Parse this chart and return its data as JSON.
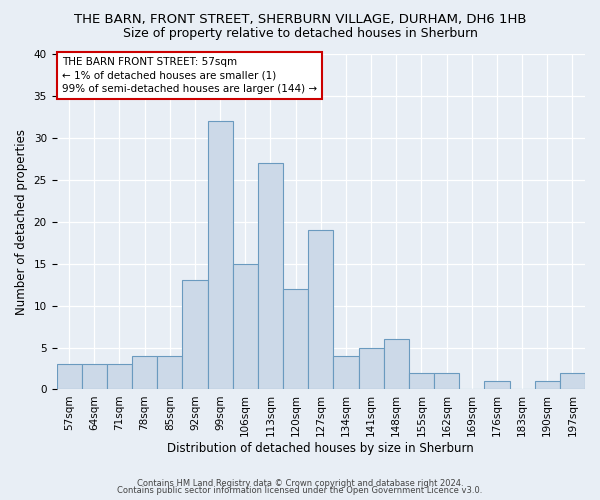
{
  "title_line1": "THE BARN, FRONT STREET, SHERBURN VILLAGE, DURHAM, DH6 1HB",
  "title_line2": "Size of property relative to detached houses in Sherburn",
  "xlabel": "Distribution of detached houses by size in Sherburn",
  "ylabel": "Number of detached properties",
  "bar_color": "#ccd9e8",
  "bar_edge_color": "#6a9abf",
  "annotation_text": "THE BARN FRONT STREET: 57sqm\n← 1% of detached houses are smaller (1)\n99% of semi-detached houses are larger (144) →",
  "annotation_box_color": "#ffffff",
  "annotation_box_edge_color": "#cc0000",
  "footnote1": "Contains HM Land Registry data © Crown copyright and database right 2024.",
  "footnote2": "Contains public sector information licensed under the Open Government Licence v3.0.",
  "bin_labels": [
    "57sqm",
    "64sqm",
    "71sqm",
    "78sqm",
    "85sqm",
    "92sqm",
    "99sqm",
    "106sqm",
    "113sqm",
    "120sqm",
    "127sqm",
    "134sqm",
    "141sqm",
    "148sqm",
    "155sqm",
    "162sqm",
    "169sqm",
    "176sqm",
    "183sqm",
    "190sqm",
    "197sqm"
  ],
  "bar_heights": [
    3,
    3,
    3,
    4,
    4,
    13,
    32,
    15,
    27,
    12,
    19,
    4,
    5,
    6,
    2,
    2,
    0,
    1,
    0,
    1,
    2
  ],
  "ylim": [
    0,
    40
  ],
  "yticks": [
    0,
    5,
    10,
    15,
    20,
    25,
    30,
    35,
    40
  ],
  "background_color": "#e8eef5",
  "plot_bg_color": "#e8eef5",
  "grid_color": "#ffffff",
  "title_fontsize": 9.5,
  "subtitle_fontsize": 9,
  "tick_fontsize": 7.5,
  "ylabel_fontsize": 8.5,
  "xlabel_fontsize": 8.5,
  "annotation_fontsize": 7.5,
  "footnote_fontsize": 6.0
}
